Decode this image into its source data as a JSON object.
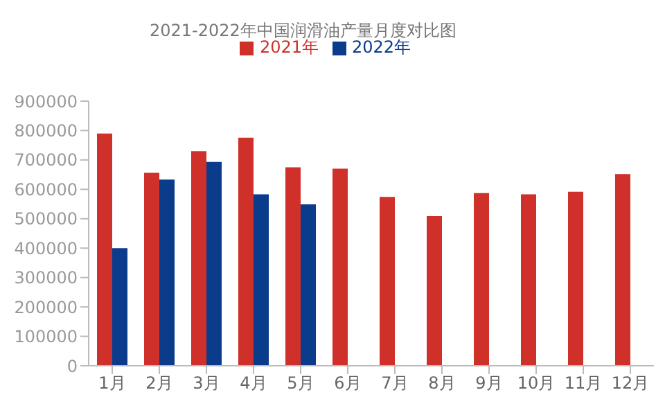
{
  "chart_data": {
    "type": "bar",
    "title": "2021-2022年中国润滑油产量月度对比图",
    "categories": [
      "1月",
      "2月",
      "3月",
      "4月",
      "5月",
      "6月",
      "7月",
      "8月",
      "9月",
      "10月",
      "11月",
      "12月"
    ],
    "series": [
      {
        "name": "2021年",
        "color": "#d0302a",
        "values": [
          790000,
          656000,
          730000,
          776000,
          675000,
          670000,
          574000,
          509000,
          587000,
          583000,
          592000,
          652000
        ]
      },
      {
        "name": "2022年",
        "color": "#0b3c8c",
        "values": [
          400000,
          633000,
          693000,
          583000,
          549000,
          null,
          null,
          null,
          null,
          null,
          null,
          null
        ]
      }
    ],
    "ylim": [
      0,
      900000
    ],
    "yticks": [
      0,
      100000,
      200000,
      300000,
      400000,
      500000,
      600000,
      700000,
      800000,
      900000
    ],
    "grid": false,
    "legend": "top"
  }
}
